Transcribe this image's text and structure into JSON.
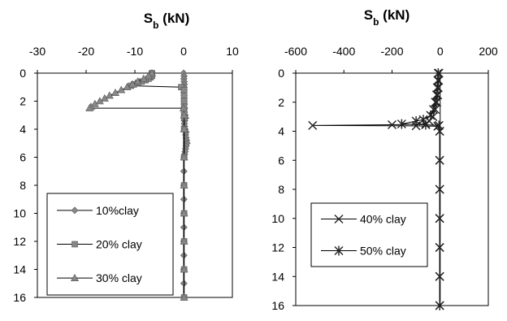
{
  "chart_data": [
    {
      "type": "line",
      "title_main": "S",
      "title_sub": "b",
      "title_unit": " (kN)",
      "xlim": [
        -30,
        10
      ],
      "ylim": [
        0,
        16
      ],
      "xticks": [
        "-30",
        "-20",
        "-10",
        "0",
        "10"
      ],
      "yticks": [
        "0",
        "2",
        "4",
        "6",
        "8",
        "10",
        "12",
        "14",
        "16"
      ],
      "legend_position": "bottom-left",
      "series": [
        {
          "name": "10%clay",
          "marker": "diamond",
          "color": "#888888",
          "points": [
            [
              0,
              0
            ],
            [
              0.1,
              0.2
            ],
            [
              0.05,
              0.4
            ],
            [
              0.1,
              0.6
            ],
            [
              0.15,
              0.8
            ],
            [
              0.1,
              1.0
            ],
            [
              0.1,
              1.2
            ],
            [
              0.05,
              1.4
            ],
            [
              0.1,
              1.6
            ],
            [
              0.1,
              1.8
            ],
            [
              0.1,
              2.0
            ],
            [
              0.15,
              2.2
            ],
            [
              0.2,
              2.5
            ],
            [
              0.15,
              2.8
            ],
            [
              0.3,
              3.0
            ],
            [
              0.4,
              3.2
            ],
            [
              0.2,
              3.4
            ],
            [
              0.15,
              3.6
            ],
            [
              0.2,
              3.8
            ],
            [
              0.3,
              4.0
            ],
            [
              0.5,
              4.2
            ],
            [
              0.4,
              4.4
            ],
            [
              0.5,
              4.6
            ],
            [
              0.6,
              4.8
            ],
            [
              0.7,
              5.0
            ],
            [
              0.5,
              5.2
            ],
            [
              0.4,
              5.4
            ],
            [
              0.3,
              5.6
            ],
            [
              0.2,
              5.8
            ],
            [
              0.1,
              6.0
            ],
            [
              0.05,
              7.0
            ],
            [
              0.05,
              8.0
            ],
            [
              0.05,
              9.0
            ],
            [
              0.05,
              10.0
            ],
            [
              0.05,
              11.0
            ],
            [
              0.05,
              12.0
            ],
            [
              0.05,
              13.0
            ],
            [
              0.05,
              14.0
            ],
            [
              0.05,
              15.0
            ],
            [
              0.05,
              16.0
            ]
          ]
        },
        {
          "name": "20% clay",
          "marker": "square",
          "color": "#888888",
          "points": [
            [
              -6.5,
              0.0
            ],
            [
              -6.5,
              0.1
            ],
            [
              -6.5,
              0.2
            ],
            [
              -6.8,
              0.3
            ],
            [
              -7.2,
              0.4
            ],
            [
              -7.8,
              0.5
            ],
            [
              -8.6,
              0.6
            ],
            [
              -9.4,
              0.7
            ],
            [
              -10.2,
              0.8
            ],
            [
              -10.8,
              0.9
            ],
            [
              -0.5,
              1.0
            ],
            [
              0.1,
              1.2
            ],
            [
              0.1,
              1.6
            ],
            [
              0.1,
              2.0
            ],
            [
              0.1,
              2.4
            ],
            [
              0.1,
              2.8
            ],
            [
              0.1,
              3.2
            ],
            [
              0.1,
              4.0
            ],
            [
              0.1,
              6.0
            ],
            [
              0.1,
              8.0
            ],
            [
              0.1,
              10.0
            ],
            [
              0.1,
              12.0
            ],
            [
              0.1,
              14.0
            ],
            [
              0.1,
              16.0
            ]
          ]
        },
        {
          "name": "30% clay",
          "marker": "triangle",
          "color": "#888888",
          "points": [
            [
              -6.5,
              0.0
            ],
            [
              -7.2,
              0.2
            ],
            [
              -8.2,
              0.4
            ],
            [
              -9.4,
              0.6
            ],
            [
              -10.5,
              0.8
            ],
            [
              -11.6,
              1.0
            ],
            [
              -12.8,
              1.2
            ],
            [
              -14.0,
              1.4
            ],
            [
              -15.2,
              1.6
            ],
            [
              -16.2,
              1.8
            ],
            [
              -17.2,
              2.0
            ],
            [
              -18.2,
              2.2
            ],
            [
              -19.0,
              2.4
            ],
            [
              -19.3,
              2.5
            ],
            [
              0.0,
              2.5
            ],
            [
              0.1,
              3.0
            ],
            [
              0.1,
              4.0
            ],
            [
              0.1,
              6.0
            ],
            [
              0.1,
              8.0
            ],
            [
              0.1,
              10.0
            ],
            [
              0.1,
              12.0
            ],
            [
              0.1,
              14.0
            ],
            [
              0.1,
              16.0
            ]
          ]
        }
      ]
    },
    {
      "type": "line",
      "title_main": "S",
      "title_sub": "b",
      "title_unit": " (kN)",
      "xlim": [
        -600,
        200
      ],
      "ylim": [
        0,
        16
      ],
      "xticks": [
        "-600",
        "-400",
        "-200",
        "0",
        "200"
      ],
      "yticks": [
        "0",
        "2",
        "4",
        "6",
        "8",
        "10",
        "12",
        "14",
        "16"
      ],
      "legend_position": "bottom-left",
      "series": [
        {
          "name": "40% clay",
          "marker": "x",
          "color": "#222222",
          "points": [
            [
              -5,
              0.0
            ],
            [
              -6,
              0.5
            ],
            [
              -8,
              1.0
            ],
            [
              -10,
              1.5
            ],
            [
              -14,
              2.0
            ],
            [
              -20,
              2.5
            ],
            [
              -30,
              3.0
            ],
            [
              -45,
              3.3
            ],
            [
              -60,
              3.5
            ],
            [
              -200,
              3.55
            ],
            [
              -530,
              3.6
            ],
            [
              -100,
              3.63
            ],
            [
              -10,
              3.66
            ],
            [
              -2,
              4.0
            ],
            [
              -2,
              6.0
            ],
            [
              -2,
              8.0
            ],
            [
              -2,
              10.0
            ],
            [
              -2,
              12.0
            ],
            [
              -2,
              14.0
            ],
            [
              -2,
              16.0
            ]
          ]
        },
        {
          "name": "50% clay",
          "marker": "star",
          "color": "#222222",
          "points": [
            [
              -8,
              0.0
            ],
            [
              -10,
              0.5
            ],
            [
              -12,
              1.0
            ],
            [
              -15,
              1.5
            ],
            [
              -20,
              2.0
            ],
            [
              -28,
              2.5
            ],
            [
              -40,
              2.9
            ],
            [
              -70,
              3.2
            ],
            [
              -100,
              3.3
            ],
            [
              -160,
              3.5
            ],
            [
              -60,
              3.55
            ],
            [
              -5,
              3.6
            ],
            [
              -2,
              4.0
            ],
            [
              -2,
              6.0
            ],
            [
              -2,
              8.0
            ],
            [
              -2,
              10.0
            ],
            [
              -2,
              12.0
            ],
            [
              -2,
              14.0
            ],
            [
              -2,
              16.0
            ]
          ]
        }
      ]
    }
  ]
}
